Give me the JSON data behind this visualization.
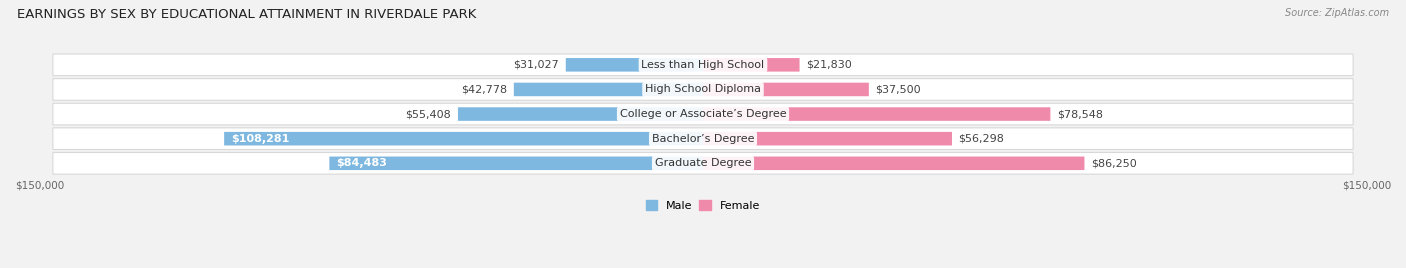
{
  "title": "EARNINGS BY SEX BY EDUCATIONAL ATTAINMENT IN RIVERDALE PARK",
  "source": "Source: ZipAtlas.com",
  "categories": [
    "Less than High School",
    "High School Diploma",
    "College or Associate’s Degree",
    "Bachelor’s Degree",
    "Graduate Degree"
  ],
  "male_values": [
    31027,
    42778,
    55408,
    108281,
    84483
  ],
  "female_values": [
    21830,
    37500,
    78548,
    56298,
    86250
  ],
  "male_color": "#7eb8e0",
  "female_color": "#f08aaa",
  "male_label": "Male",
  "female_label": "Female",
  "axis_limit": 150000,
  "bg_color": "#f2f2f2",
  "row_bg_color": "#ffffff",
  "row_border_color": "#d8d8d8",
  "value_fontsize": 8.0,
  "category_fontsize": 8.0,
  "title_fontsize": 9.5,
  "tick_fontsize": 7.5
}
